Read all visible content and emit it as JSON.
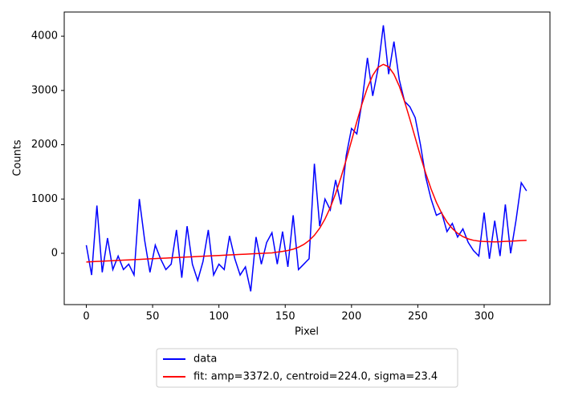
{
  "chart_data": {
    "type": "line",
    "xlabel": "Pixel",
    "ylabel": "Counts",
    "x": [
      0,
      4,
      8,
      12,
      16,
      20,
      24,
      28,
      32,
      36,
      40,
      44,
      48,
      52,
      56,
      60,
      64,
      68,
      72,
      76,
      80,
      84,
      88,
      92,
      96,
      100,
      104,
      108,
      112,
      116,
      120,
      124,
      128,
      132,
      136,
      140,
      144,
      148,
      152,
      156,
      160,
      164,
      168,
      172,
      176,
      180,
      184,
      188,
      192,
      196,
      200,
      204,
      208,
      212,
      216,
      220,
      224,
      228,
      232,
      236,
      240,
      244,
      248,
      252,
      256,
      260,
      264,
      268,
      272,
      276,
      280,
      284,
      288,
      292,
      296,
      300,
      304,
      308,
      312,
      316,
      320,
      324,
      328,
      332
    ],
    "series": [
      {
        "name": "data",
        "color": "#0000ff",
        "values": [
          150,
          -400,
          880,
          -350,
          280,
          -300,
          -50,
          -300,
          -200,
          -400,
          1000,
          240,
          -350,
          150,
          -100,
          -300,
          -200,
          430,
          -450,
          500,
          -200,
          -500,
          -150,
          430,
          -400,
          -200,
          -300,
          320,
          -100,
          -400,
          -250,
          -700,
          300,
          -200,
          200,
          380,
          -200,
          400,
          -250,
          700,
          -300,
          -200,
          -100,
          1650,
          500,
          1000,
          800,
          1350,
          900,
          1800,
          2300,
          2200,
          2800,
          3600,
          2900,
          3400,
          4200,
          3300,
          3900,
          3200,
          2800,
          2700,
          2500,
          2000,
          1400,
          1000,
          700,
          750,
          400,
          550,
          300,
          450,
          200,
          50,
          -50,
          750,
          -100,
          600,
          -50,
          900,
          0,
          600,
          1300,
          1150
        ]
      },
      {
        "name": "fit: amp=3372.0, centroid=224.0, sigma=23.4",
        "color": "#ff0000",
        "values": [
          -160,
          -155,
          -150,
          -146,
          -141,
          -136,
          -131,
          -126,
          -122,
          -117,
          -112,
          -107,
          -102,
          -98,
          -93,
          -88,
          -83,
          -78,
          -74,
          -69,
          -64,
          -59,
          -54,
          -50,
          -45,
          -40,
          -35,
          -30,
          -26,
          -21,
          -16,
          -11,
          -6,
          -2,
          3,
          8,
          23,
          35,
          52,
          76,
          112,
          163,
          235,
          332,
          462,
          632,
          843,
          1099,
          1394,
          1723,
          2073,
          2425,
          2759,
          3051,
          3279,
          3427,
          3481,
          3437,
          3298,
          3080,
          2797,
          2473,
          2131,
          1790,
          1471,
          1185,
          939,
          738,
          577,
          457,
          369,
          307,
          266,
          239,
          225,
          217,
          215,
          210,
          214,
          219,
          224,
          229,
          234,
          238
        ]
      }
    ],
    "xlim": [
      -16.65,
      349.65
    ],
    "xticks": [
      0,
      50,
      100,
      150,
      200,
      250,
      300
    ],
    "ylim": [
      -945,
      4445
    ],
    "yticks": [
      0,
      1000,
      2000,
      3000,
      4000
    ],
    "legend": "below"
  }
}
